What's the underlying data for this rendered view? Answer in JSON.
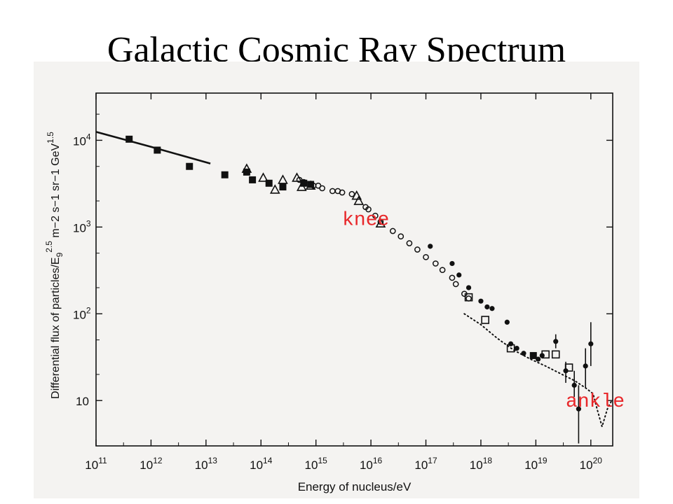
{
  "title": "Galactic Cosmic Ray Spectrum",
  "chart_data": {
    "type": "scatter",
    "xlabel": "Energy of nucleus/eV",
    "ylabel": "Differential flux of particles/E",
    "ylabel_sub": "9",
    "ylabel_sup": "2.5",
    "ylabel_units": " m−2 s−1 sr−1 GeV",
    "ylabel_units_sup": "1.5",
    "x_scale": "log",
    "y_scale": "log",
    "xlim": [
      100000000000.0,
      2.5e+20
    ],
    "ylim": [
      3,
      35000
    ],
    "x_ticks": [
      {
        "value": 100000000000.0,
        "base": "10",
        "exp": "11"
      },
      {
        "value": 1000000000000.0,
        "base": "10",
        "exp": "12"
      },
      {
        "value": 10000000000000.0,
        "base": "10",
        "exp": "13"
      },
      {
        "value": 100000000000000.0,
        "base": "10",
        "exp": "14"
      },
      {
        "value": 1000000000000000.0,
        "base": "10",
        "exp": "15"
      },
      {
        "value": 1e+16,
        "base": "10",
        "exp": "16"
      },
      {
        "value": 1e+17,
        "base": "10",
        "exp": "17"
      },
      {
        "value": 1e+18,
        "base": "10",
        "exp": "18"
      },
      {
        "value": 1e+19,
        "base": "10",
        "exp": "19"
      },
      {
        "value": 1e+20,
        "base": "10",
        "exp": "20"
      }
    ],
    "y_ticks": [
      {
        "value": 10,
        "base": "10",
        "exp": ""
      },
      {
        "value": 100,
        "base": "10",
        "exp": "2"
      },
      {
        "value": 1000,
        "base": "10",
        "exp": "3"
      },
      {
        "value": 10000,
        "base": "10",
        "exp": "4"
      }
    ],
    "grid": false,
    "curve": {
      "style": "solid",
      "points": [
        [
          100000000000.0,
          12500
        ],
        [
          1000000000000.0,
          8400
        ],
        [
          12000000000000.0,
          5400
        ]
      ]
    },
    "dotted_curve": {
      "style": "dotted",
      "points": [
        [
          5e+17,
          100
        ],
        [
          1e+18,
          75
        ],
        [
          2e+18,
          52
        ],
        [
          4e+18,
          38
        ],
        [
          8e+18,
          30
        ],
        [
          1.5e+19,
          25
        ],
        [
          3e+19,
          20
        ],
        [
          5e+19,
          17
        ],
        [
          8e+19,
          14
        ],
        [
          1.1e+20,
          12
        ],
        [
          1.3e+20,
          8
        ],
        [
          1.6e+20,
          5
        ],
        [
          2e+20,
          8
        ],
        [
          2.4e+20,
          10
        ]
      ]
    },
    "series": [
      {
        "marker": "filled-square",
        "points": [
          [
            400000000000.0,
            10300
          ],
          [
            1300000000000.0,
            7700
          ],
          [
            5000000000000.0,
            5000
          ],
          [
            22000000000000.0,
            4000
          ],
          [
            55000000000000.0,
            4300
          ],
          [
            70000000000000.0,
            3500
          ],
          [
            140000000000000.0,
            3200
          ],
          [
            250000000000000.0,
            2900
          ],
          [
            600000000000000.0,
            3200
          ],
          [
            800000000000000.0,
            3100
          ],
          [
            9e+18,
            33
          ]
        ]
      },
      {
        "marker": "open-triangle",
        "points": [
          [
            55000000000000.0,
            4700
          ],
          [
            110000000000000.0,
            3700
          ],
          [
            180000000000000.0,
            2700
          ],
          [
            250000000000000.0,
            3500
          ],
          [
            450000000000000.0,
            3700
          ],
          [
            550000000000000.0,
            2900
          ],
          [
            800000000000000.0,
            3000
          ],
          [
            5500000000000000.0,
            2300
          ],
          [
            6000000000000000.0,
            2000
          ],
          [
            1.5e+16,
            1100
          ]
        ]
      },
      {
        "marker": "open-circle",
        "points": [
          [
            500000000000000.0,
            3500
          ],
          [
            600000000000000.0,
            3300
          ],
          [
            900000000000000.0,
            3000
          ],
          [
            1100000000000000.0,
            3000
          ],
          [
            1300000000000000.0,
            2800
          ],
          [
            2000000000000000.0,
            2600
          ],
          [
            2500000000000000.0,
            2600
          ],
          [
            3000000000000000.0,
            2500
          ],
          [
            4500000000000000.0,
            2400
          ],
          [
            8000000000000000.0,
            1700
          ],
          [
            9000000000000000.0,
            1600
          ],
          [
            1.2e+16,
            1350
          ],
          [
            1.5e+16,
            1150
          ],
          [
            2.5e+16,
            900
          ],
          [
            3.5e+16,
            780
          ],
          [
            5e+16,
            650
          ],
          [
            7e+16,
            550
          ],
          [
            1e+17,
            450
          ],
          [
            1.5e+17,
            380
          ],
          [
            2e+17,
            320
          ],
          [
            3e+17,
            260
          ],
          [
            3.5e+17,
            220
          ],
          [
            5e+17,
            170
          ],
          [
            6e+17,
            150
          ]
        ]
      },
      {
        "marker": "filled-circle",
        "points": [
          [
            1.2e+17,
            600
          ],
          [
            3e+17,
            380
          ],
          [
            4e+17,
            280
          ],
          [
            6e+17,
            200
          ],
          [
            1e+18,
            140
          ],
          [
            1.3e+18,
            120
          ],
          [
            1.6e+18,
            115
          ],
          [
            3e+18,
            80
          ],
          [
            3.5e+18,
            45
          ],
          [
            4.5e+18,
            40
          ],
          [
            6e+18,
            35
          ],
          [
            1.1e+19,
            30
          ],
          [
            1.3e+19,
            33
          ],
          [
            2.3e+19,
            48
          ],
          [
            3.5e+19,
            22
          ],
          [
            5e+19,
            15
          ],
          [
            6e+19,
            8
          ],
          [
            8e+19,
            25
          ],
          [
            1e+20,
            45
          ]
        ],
        "error_bars": [
          [
            6e+19,
            3.2,
            15
          ],
          [
            8e+19,
            14,
            40
          ],
          [
            1e+20,
            25,
            80
          ],
          [
            3.5e+19,
            16,
            28
          ],
          [
            2.3e+19,
            40,
            58
          ],
          [
            5e+19,
            11,
            22
          ]
        ]
      },
      {
        "marker": "open-square",
        "points": [
          [
            6e+17,
            155
          ],
          [
            1.2e+18,
            85
          ],
          [
            3.5e+18,
            40
          ],
          [
            1.5e+19,
            34
          ],
          [
            2.3e+19,
            34
          ],
          [
            4e+19,
            24
          ]
        ]
      }
    ],
    "annotations": [
      {
        "text": "knee",
        "x": 3000000000000000.0,
        "y": 1050,
        "color": "#e8272a"
      },
      {
        "text": "ankle",
        "x": 3.5e+19,
        "y": 8.5,
        "color": "#e8272a"
      }
    ],
    "colors": {
      "marks": "#111111",
      "annotation": "#e8272a",
      "panel": "#f4f3f1"
    }
  }
}
